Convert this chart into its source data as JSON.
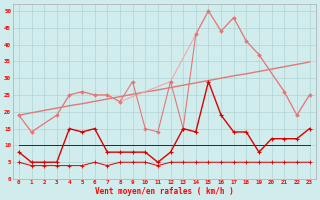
{
  "hours": [
    0,
    1,
    2,
    3,
    4,
    5,
    6,
    7,
    8,
    9,
    10,
    11,
    12,
    13,
    14,
    15,
    16,
    17,
    18,
    19,
    20,
    21,
    22,
    23
  ],
  "series_rafales_light": [
    19,
    14,
    null,
    19,
    25,
    26,
    25,
    25,
    23,
    null,
    null,
    null,
    29,
    null,
    43,
    50,
    44,
    48,
    41,
    37,
    null,
    26,
    19,
    25
  ],
  "series_vent_pink_markers": [
    19,
    14,
    null,
    19,
    25,
    26,
    25,
    25,
    23,
    29,
    15,
    14,
    29,
    15,
    43,
    50,
    44,
    48,
    41,
    37,
    null,
    26,
    19,
    25
  ],
  "series_trend_diag": [
    19,
    19.7,
    20.4,
    21.1,
    21.8,
    22.4,
    23.1,
    23.8,
    24.5,
    25.2,
    25.9,
    26.5,
    27.2,
    27.9,
    28.6,
    29.3,
    30.0,
    30.7,
    31.3,
    32.0,
    32.7,
    33.4,
    34.1,
    34.8
  ],
  "series_vent_dark_red": [
    8,
    5,
    5,
    5,
    15,
    14,
    15,
    8,
    8,
    8,
    8,
    5,
    8,
    15,
    14,
    29,
    19,
    14,
    14,
    8,
    12,
    12,
    12,
    15
  ],
  "series_flat_dark": [
    10,
    10,
    10,
    10,
    10,
    10,
    10,
    10,
    10,
    10,
    10,
    10,
    10,
    10,
    10,
    10,
    10,
    10,
    10,
    10,
    10,
    10,
    10,
    10
  ],
  "series_bottom": [
    5,
    4,
    4,
    4,
    4,
    4,
    5,
    4,
    5,
    5,
    5,
    4,
    5,
    5,
    5,
    5,
    5,
    5,
    5,
    5,
    5,
    5,
    5,
    5
  ],
  "yticks": [
    0,
    5,
    10,
    15,
    20,
    25,
    30,
    35,
    40,
    45,
    50
  ],
  "xlabel": "Vent moyen/en rafales ( km/h )",
  "bg_color": "#d0ecec",
  "grid_color": "#b0d4d4",
  "color_light_pink": "#f0a8a8",
  "color_medium_pink": "#e07878",
  "color_dark_red": "#dd0000",
  "color_dark_brown": "#880000"
}
